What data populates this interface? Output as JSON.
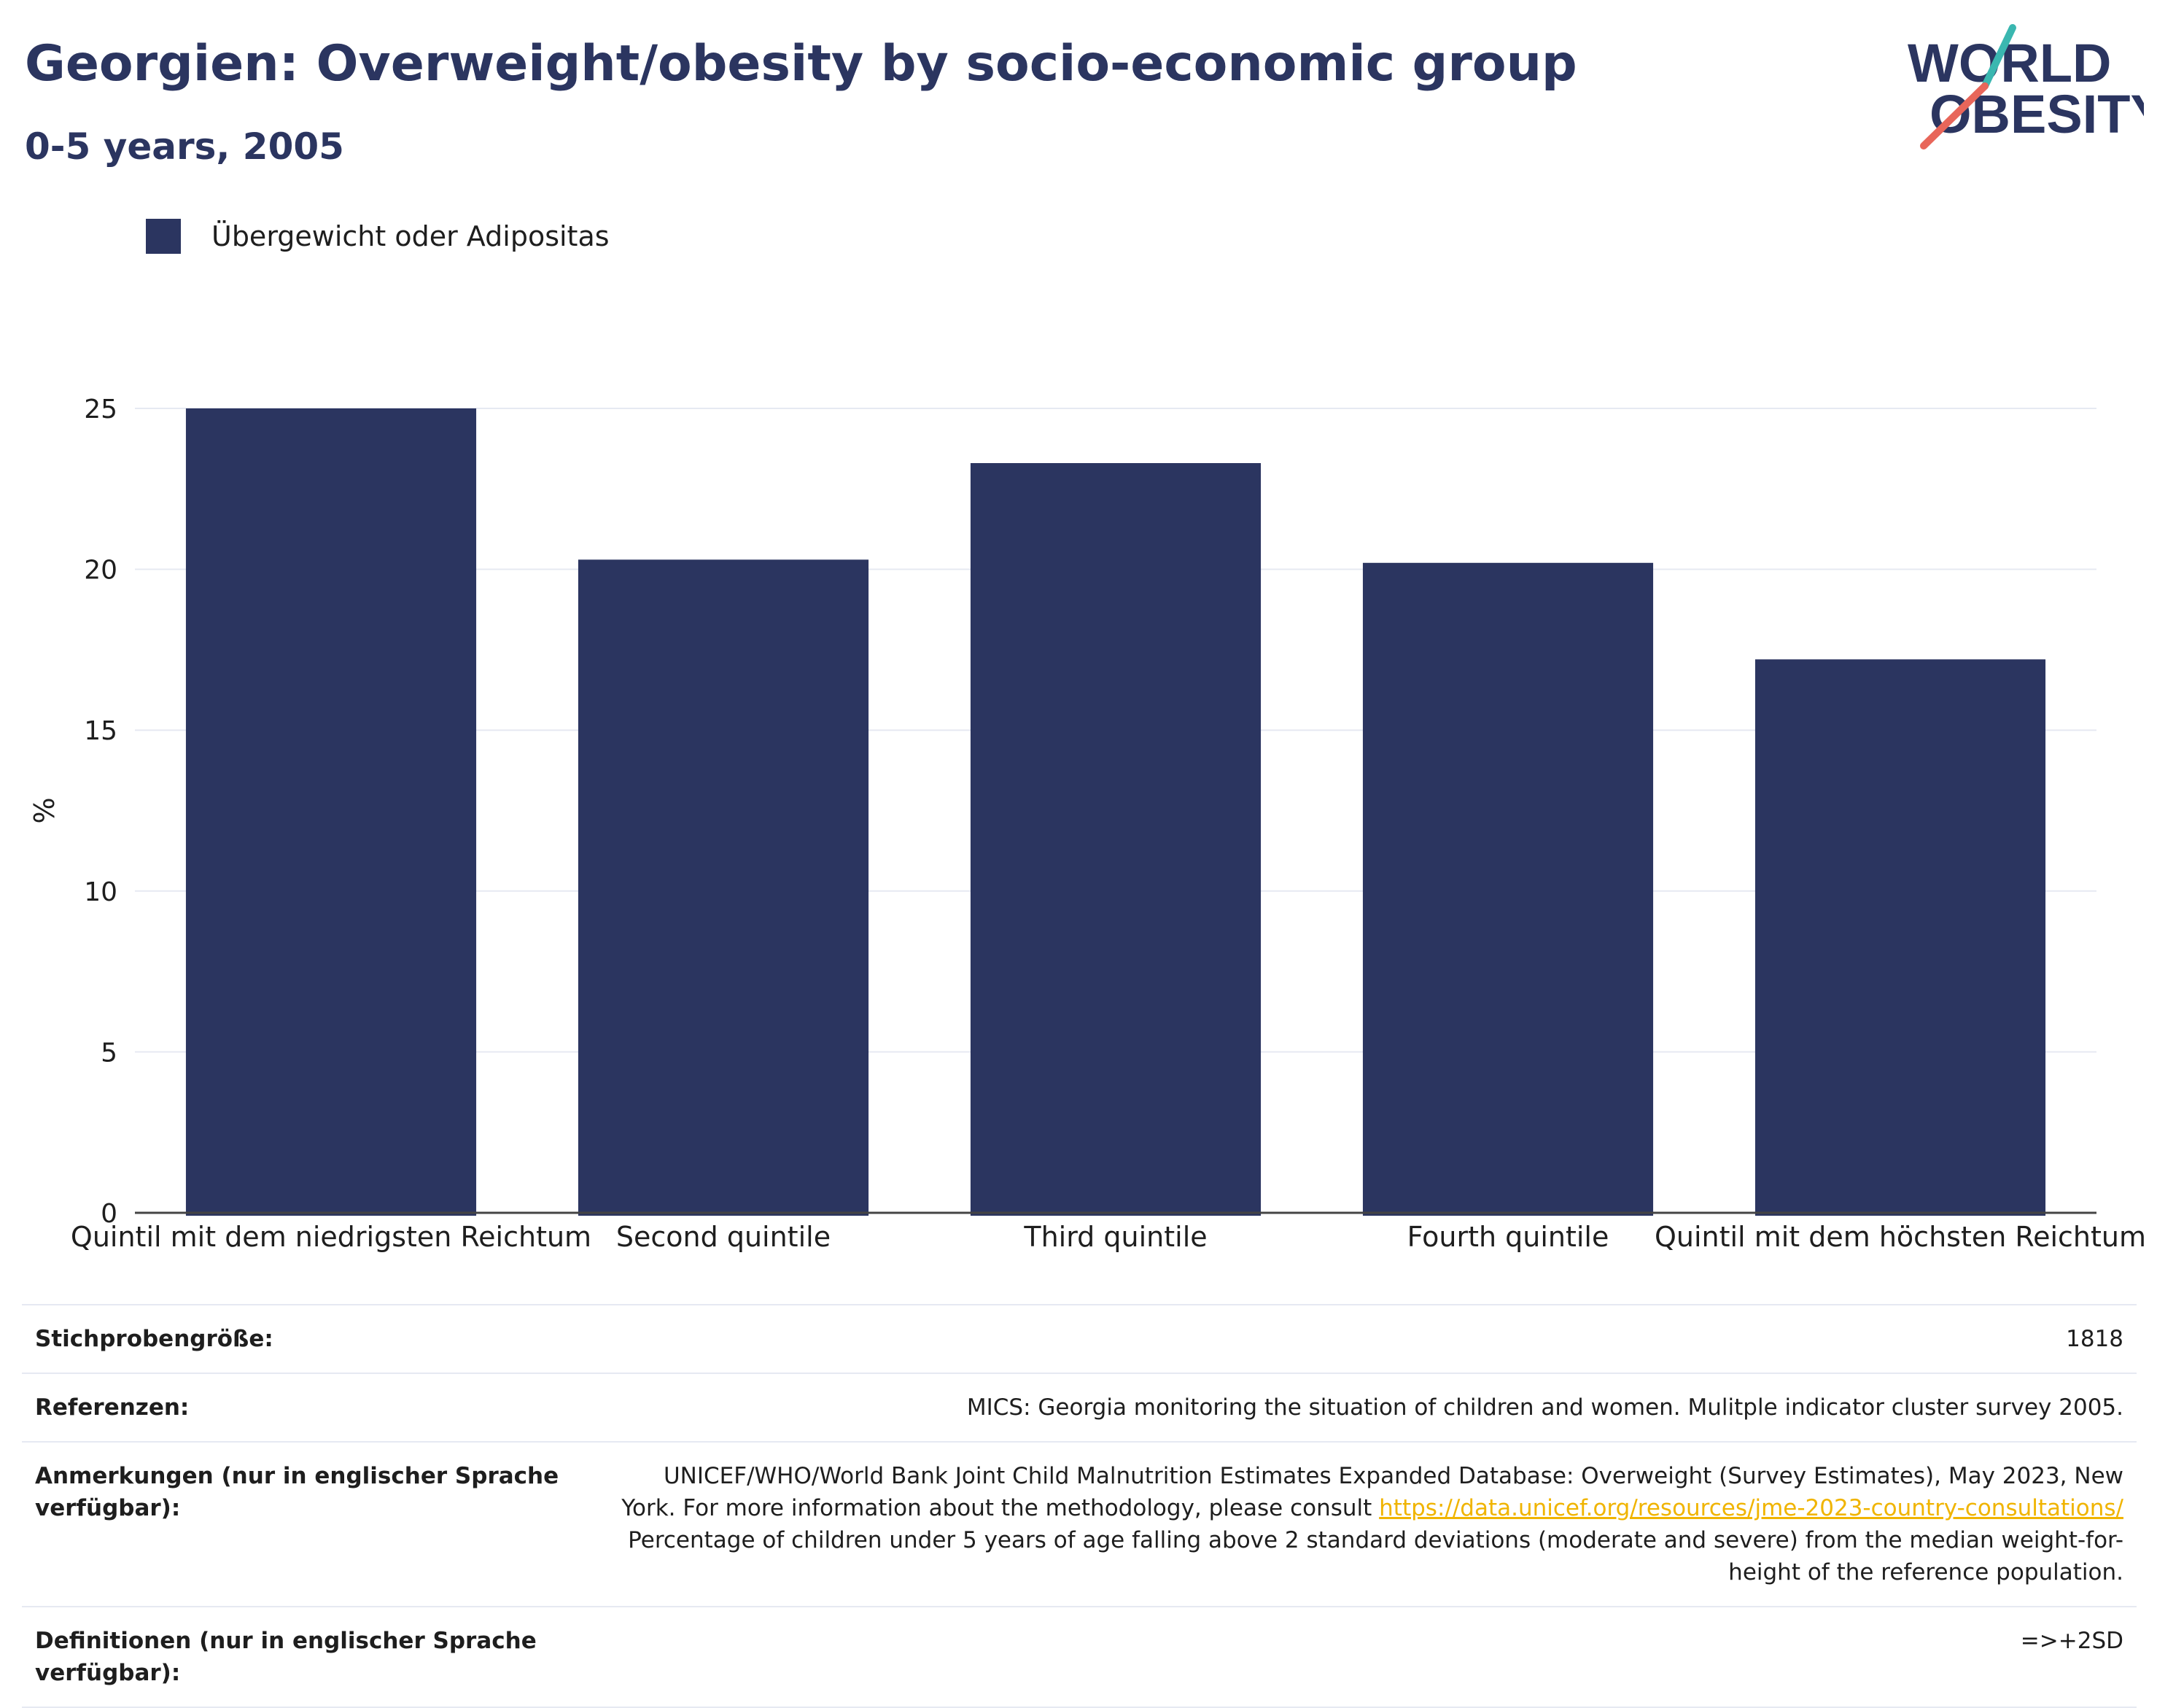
{
  "header": {
    "title": "Georgien: Overweight/obesity by socio-economic group",
    "subtitle": "0-5 years, 2005"
  },
  "logo": {
    "line1": "WORLD",
    "line2": "OBESITY",
    "colors": {
      "text": "#2b3560",
      "slash_top": "#3ab7b0",
      "slash_bottom": "#e8665a"
    }
  },
  "legend": {
    "items": [
      {
        "label": "Übergewicht oder Adipositas",
        "color": "#2b3560"
      }
    ]
  },
  "chart_data": {
    "type": "bar",
    "title": "Georgien: Overweight/obesity by socio-economic group",
    "subtitle": "0-5 years, 2005",
    "categories": [
      "Quintil mit dem niedrigsten Reichtum",
      "Second quintile",
      "Third quintile",
      "Fourth quintile",
      "Quintil mit dem höchsten Reichtum"
    ],
    "series": [
      {
        "name": "Übergewicht oder Adipositas",
        "values": [
          25.0,
          20.3,
          23.3,
          20.2,
          17.2
        ],
        "color": "#2b3560"
      }
    ],
    "xlabel": "",
    "ylabel": "%",
    "ylim": [
      0,
      25
    ],
    "yticks": [
      0,
      5,
      10,
      15,
      20,
      25
    ],
    "grid": true,
    "legend_position": "top-left"
  },
  "info": {
    "rows": [
      {
        "label": "Stichprobengröße:",
        "value": "1818"
      },
      {
        "label": "Referenzen:",
        "value": "MICS: Georgia monitoring the situation of children and women. Mulitple indicator cluster survey 2005."
      },
      {
        "label": "Anmerkungen (nur in englischer Sprache verfügbar):",
        "value_before": "UNICEF/WHO/World Bank Joint Child Malnutrition Estimates Expanded Database: Overweight (Survey Estimates), May 2023, New York. For more information about the methodology, please consult ",
        "link": "https://data.unicef.org/resources/jme-2023-country-consultations/",
        "value_after": " Percentage of children under 5 years of age falling above 2 standard deviations (moderate and severe) from the median weight-for-height of the reference population."
      },
      {
        "label": "Definitionen (nur in englischer Sprache verfügbar):",
        "value": "=>+2SD"
      }
    ]
  }
}
